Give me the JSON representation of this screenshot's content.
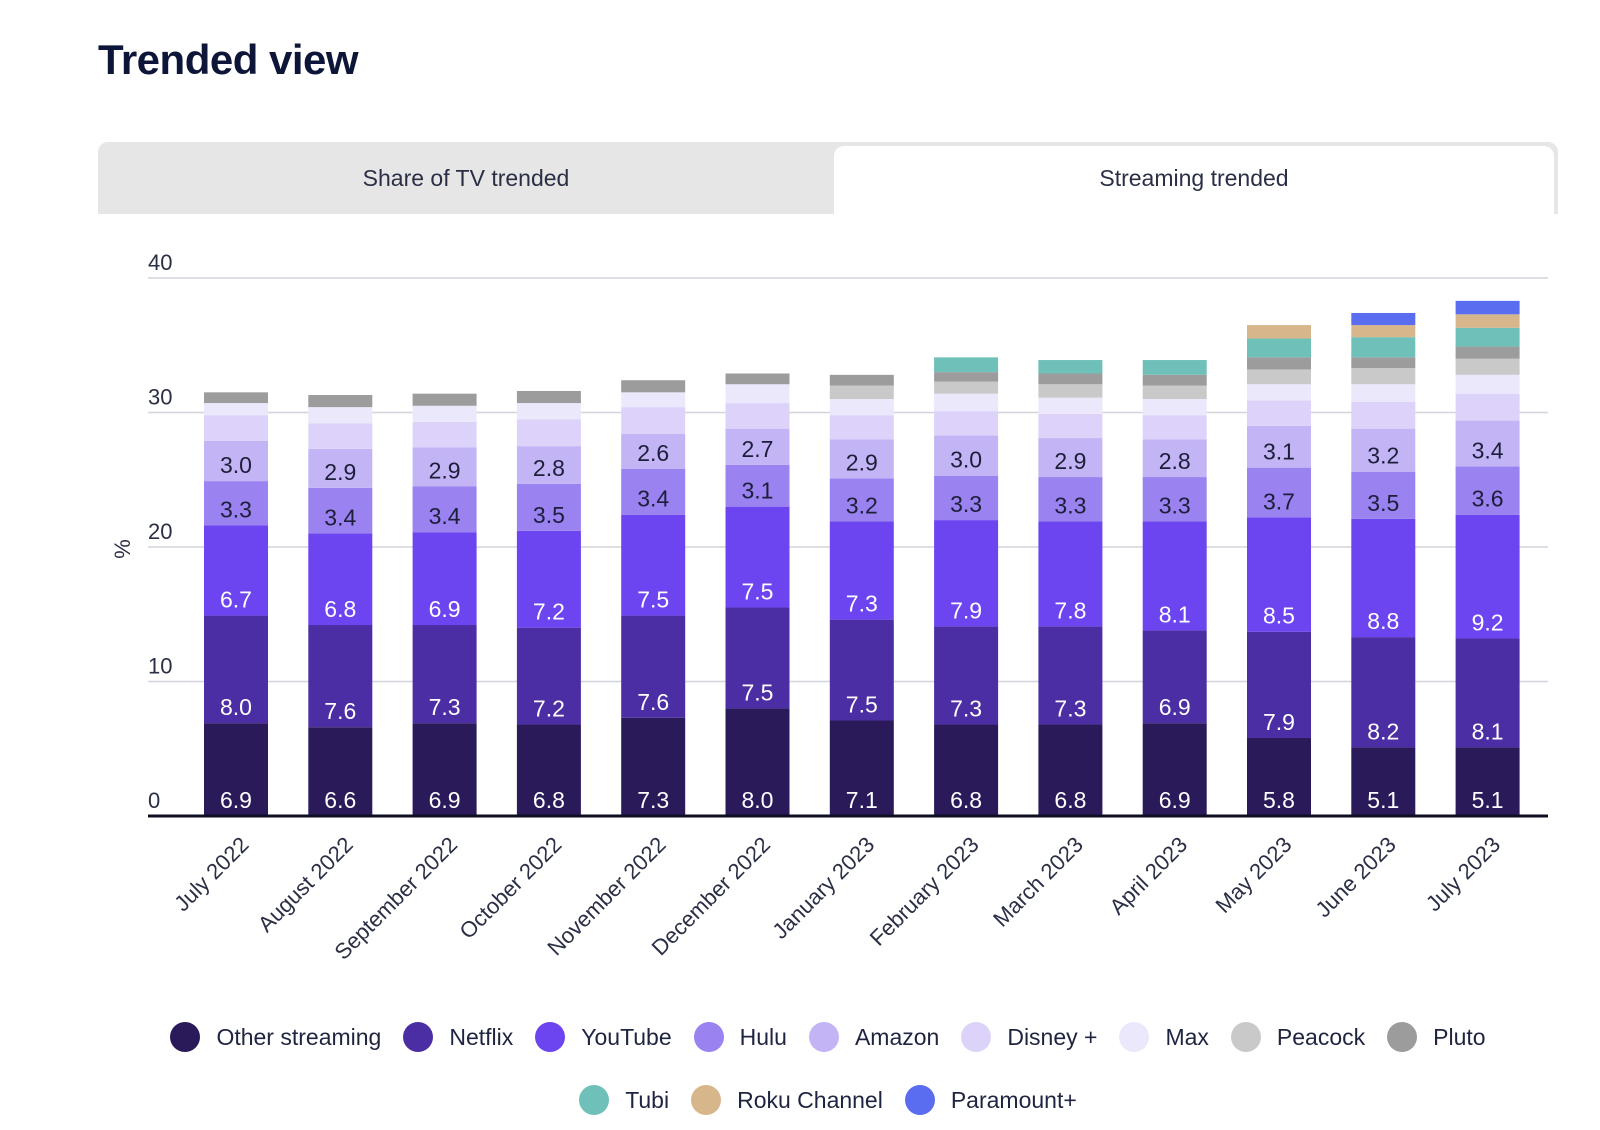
{
  "page": {
    "title": "Trended view"
  },
  "tabs": [
    {
      "label": "Share of TV trended",
      "active": false
    },
    {
      "label": "Streaming trended",
      "active": true
    }
  ],
  "chart_data": {
    "type": "bar",
    "stacked": true,
    "ylabel": "%",
    "ylim": [
      0,
      40
    ],
    "yticks": [
      0,
      10,
      20,
      30,
      40
    ],
    "grid": true,
    "legend_position": "bottom",
    "categories": [
      "July 2022",
      "August 2022",
      "September 2022",
      "October 2022",
      "November 2022",
      "December 2022",
      "January 2023",
      "February 2023",
      "March 2023",
      "April 2023",
      "May 2023",
      "June 2023",
      "July 2023"
    ],
    "series": [
      {
        "name": "Other streaming",
        "color": "#2b1a5a",
        "values": [
          6.9,
          6.6,
          6.9,
          6.8,
          7.3,
          8.0,
          7.1,
          6.8,
          6.8,
          6.9,
          5.8,
          5.1,
          5.1
        ],
        "labeled": true
      },
      {
        "name": "Netflix",
        "color": "#4b2ea3",
        "values": [
          8.0,
          7.6,
          7.3,
          7.2,
          7.6,
          7.5,
          7.5,
          7.3,
          7.3,
          6.9,
          7.9,
          8.2,
          8.1
        ],
        "labeled": true
      },
      {
        "name": "YouTube",
        "color": "#6c45f0",
        "values": [
          6.7,
          6.8,
          6.9,
          7.2,
          7.5,
          7.5,
          7.3,
          7.9,
          7.8,
          8.1,
          8.5,
          8.8,
          9.2
        ],
        "labeled": true
      },
      {
        "name": "Hulu",
        "color": "#9a82f0",
        "values": [
          3.3,
          3.4,
          3.4,
          3.5,
          3.4,
          3.1,
          3.2,
          3.3,
          3.3,
          3.3,
          3.7,
          3.5,
          3.6
        ],
        "labeled": true
      },
      {
        "name": "Amazon",
        "color": "#c3b5f5",
        "values": [
          3.0,
          2.9,
          2.9,
          2.8,
          2.6,
          2.7,
          2.9,
          3.0,
          2.9,
          2.8,
          3.1,
          3.2,
          3.4
        ],
        "labeled": true
      },
      {
        "name": "Disney +",
        "color": "#ddd3fa",
        "values": [
          1.9,
          1.9,
          1.9,
          2.0,
          2.0,
          1.9,
          1.8,
          1.8,
          1.8,
          1.8,
          1.9,
          2.0,
          2.0
        ],
        "labeled": false
      },
      {
        "name": "Max",
        "color": "#ece8fc",
        "values": [
          0.9,
          1.2,
          1.2,
          1.2,
          1.1,
          1.4,
          1.2,
          1.3,
          1.2,
          1.2,
          1.2,
          1.3,
          1.4
        ],
        "labeled": false
      },
      {
        "name": "Peacock",
        "color": "#c9c9c9",
        "values": [
          0,
          0,
          0,
          0,
          0,
          0,
          1.0,
          0.9,
          1.0,
          1.0,
          1.1,
          1.2,
          1.2
        ],
        "labeled": false
      },
      {
        "name": "Pluto",
        "color": "#9c9c9c",
        "values": [
          0.8,
          0.9,
          0.9,
          0.9,
          0.9,
          0.8,
          0.8,
          0.7,
          0.8,
          0.8,
          0.9,
          0.8,
          0.9
        ],
        "labeled": false
      },
      {
        "name": "Tubi",
        "color": "#6fc0b8",
        "values": [
          0,
          0,
          0,
          0,
          0,
          0,
          0,
          1.1,
          1.0,
          1.1,
          1.4,
          1.5,
          1.4
        ],
        "labeled": false
      },
      {
        "name": "Roku Channel",
        "color": "#d8b68b",
        "values": [
          0,
          0,
          0,
          0,
          0,
          0,
          0,
          0,
          0,
          0,
          1.0,
          0.9,
          1.0
        ],
        "labeled": false
      },
      {
        "name": "Paramount+",
        "color": "#5a6cf0",
        "values": [
          0,
          0,
          0,
          0,
          0,
          0,
          0,
          0,
          0,
          0,
          0,
          0.9,
          1.0
        ],
        "labeled": false
      }
    ]
  }
}
